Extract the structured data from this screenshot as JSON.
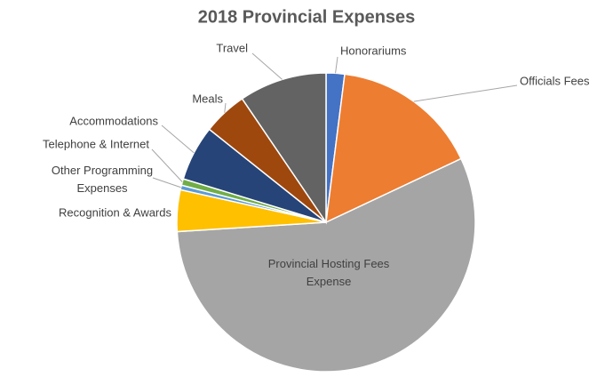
{
  "chart_data": {
    "type": "pie",
    "title": "2018 Provincial Expenses",
    "categories": [
      "Honorariums",
      "Officials Fees",
      "Provincial Hosting Fees Expense",
      "Recognition & Awards",
      "Other Programming Expenses",
      "Telephone & Internet",
      "Accommodations",
      "Meals",
      "Travel"
    ],
    "values": [
      2,
      16,
      56,
      4.5,
      0.5,
      0.7,
      6,
      4.8,
      9.5
    ],
    "colors": [
      "#4472c4",
      "#ed7d31",
      "#a5a5a5",
      "#ffc000",
      "#5b9bd5",
      "#70ad47",
      "#264478",
      "#9e480e",
      "#636363"
    ]
  }
}
